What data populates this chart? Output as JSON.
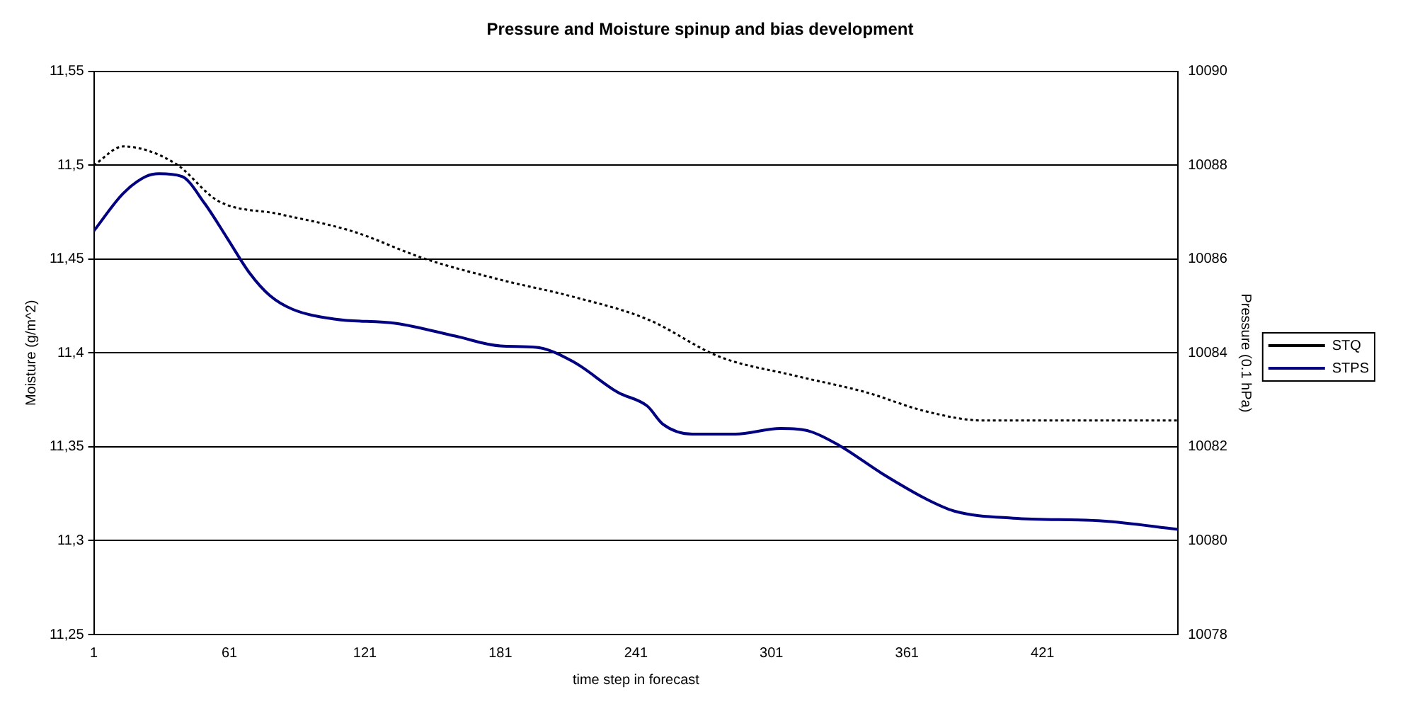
{
  "chart_data": {
    "type": "line",
    "title": "Pressure and Moisture spinup and bias development",
    "xlabel": "time step in forecast",
    "ylabel": "Moisture (g/m^2)",
    "y2label": "Pressure (0.1 hPa)",
    "xlim": [
      1,
      481
    ],
    "xticks": [
      1,
      61,
      121,
      181,
      241,
      301,
      361,
      421
    ],
    "ylim": [
      11.25,
      11.55
    ],
    "yticks": [
      {
        "value": 11.25,
        "label": "11,25"
      },
      {
        "value": 11.3,
        "label": "11,3"
      },
      {
        "value": 11.35,
        "label": "11,35"
      },
      {
        "value": 11.4,
        "label": "11,4"
      },
      {
        "value": 11.45,
        "label": "11,45"
      },
      {
        "value": 11.5,
        "label": "11,5"
      },
      {
        "value": 11.55,
        "label": "11,55"
      }
    ],
    "y2lim": [
      10078,
      10090
    ],
    "y2ticks": [
      10078,
      10080,
      10082,
      10084,
      10086,
      10088,
      10090
    ],
    "grid": "y",
    "legend": "right",
    "series": [
      {
        "name": "STQ",
        "color": "#000000",
        "line_style": "dotted",
        "x": [
          1,
          14,
          37,
          56,
          83,
          115,
          148,
          181,
          213,
          246,
          278,
          311,
          343,
          369,
          395,
          435,
          481
        ],
        "values": [
          11.5,
          11.51,
          11.501,
          11.481,
          11.474,
          11.465,
          11.45,
          11.439,
          11.43,
          11.418,
          11.398,
          11.388,
          11.379,
          11.369,
          11.364,
          11.364,
          11.364
        ]
      },
      {
        "name": "STPS",
        "color": "#000080",
        "line_style": "solid",
        "axis": "y2",
        "x": [
          1,
          14,
          24,
          30,
          40,
          50,
          60,
          70,
          79,
          89,
          108,
          135,
          161,
          181,
          197,
          213,
          233,
          246,
          253,
          266,
          285,
          305,
          318,
          331,
          350,
          369,
          382,
          408,
          448,
          481
        ],
        "values": [
          10086.6,
          10087.4,
          10087.76,
          10087.82,
          10087.76,
          10087.19,
          10086.45,
          10085.7,
          10085.22,
          10084.93,
          10084.72,
          10084.63,
          10084.36,
          10084.15,
          10084.12,
          10083.82,
          10083.16,
          10082.87,
          10082.48,
          10082.27,
          10082.27,
          10082.39,
          10082.33,
          10082.03,
          10081.43,
          10080.9,
          10080.63,
          10080.48,
          10080.42,
          10080.24
        ]
      }
    ]
  }
}
